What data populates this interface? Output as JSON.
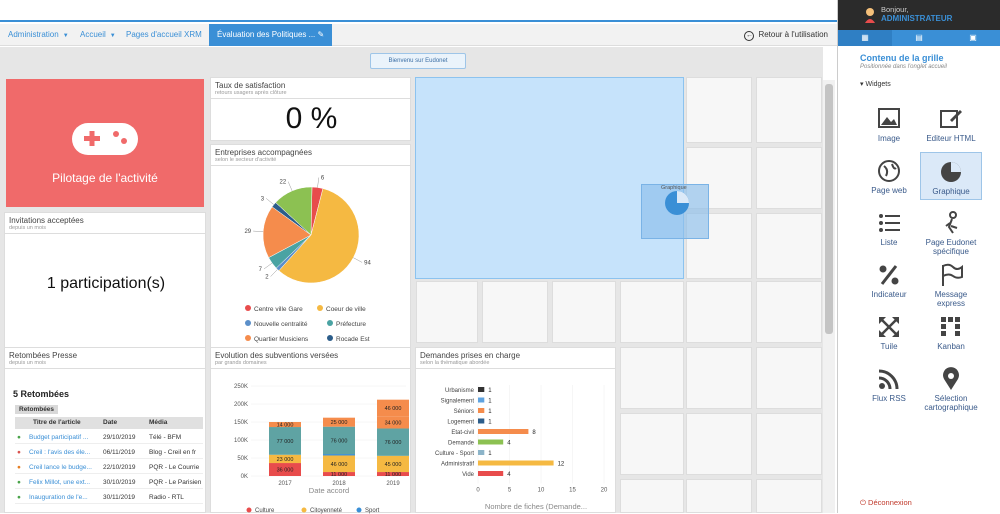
{
  "breadcrumb": {
    "items": [
      "Administration",
      "Accueil",
      "Pages d'accueil XRM"
    ],
    "active": "Évaluation des Politiques ...",
    "back": "Retour à l'utilisation"
  },
  "welcome": "Bienvenu sur Eudonet",
  "pilotage": {
    "label": "Pilotage de l'activité"
  },
  "satisfaction": {
    "title": "Taux de satisfaction",
    "subtitle": "retours usagers après clôture",
    "value": "0 %"
  },
  "invitations": {
    "title": "Invitations acceptées",
    "subtitle": "depuis un mois",
    "value": "1 participation(s)"
  },
  "entreprises": {
    "title": "Entreprises accompagnées",
    "subtitle": "selon le secteur d'activité",
    "chart_data": {
      "type": "pie",
      "slices": [
        {
          "name": "Centre ville Gare",
          "value": 6,
          "color": "#e84c4c"
        },
        {
          "name": "Coeur de ville",
          "value": 94,
          "color": "#f5b942"
        },
        {
          "name": "Nouvelle centralité",
          "value": 2,
          "color": "#5b8fc9"
        },
        {
          "name": "Préfecture",
          "value": 7,
          "color": "#4aa3a3"
        },
        {
          "name": "Quartier Musiciens",
          "value": 29,
          "color": "#f58c4c"
        },
        {
          "name": "Rocade Est",
          "value": 3,
          "color": "#2c5d8a"
        },
        {
          "name": "",
          "value": 22,
          "color": "#8cc152"
        }
      ],
      "legend": [
        "Centre ville Gare",
        "Coeur de ville",
        "Nouvelle centralité",
        "Préfecture",
        "Quartier Musiciens",
        "Rocade Est"
      ]
    }
  },
  "subventions": {
    "title": "Evolution des subventions versées",
    "subtitle": "par grands domaines",
    "xlabel": "Date accord",
    "legend": [
      "Culture",
      "Citoyenneté",
      "Sport"
    ],
    "chart_data": {
      "type": "bar",
      "stacked": true,
      "categories": [
        "2017",
        "2018",
        "2019"
      ],
      "yticks": [
        "0K",
        "50K",
        "100K",
        "150K",
        "200K",
        "250K"
      ],
      "ylim": [
        0,
        250000
      ],
      "series": [
        {
          "name": "Culture",
          "color": "#e84c4c",
          "values": [
            36000,
            11000,
            11000
          ]
        },
        {
          "name": "Citoyenneté",
          "color": "#f5b942",
          "values": [
            23000,
            46000,
            45000
          ]
        },
        {
          "name": "Sport",
          "color": "#3a8fd6",
          "values": [
            0,
            4000,
            0
          ]
        },
        {
          "name": "",
          "color": "#5fa3a3",
          "values": [
            77000,
            76000,
            76000
          ]
        },
        {
          "name": "",
          "color": "#f58c4c",
          "values": [
            14000,
            25000,
            34000
          ]
        },
        {
          "name": "",
          "color": "#f58c4c",
          "values": [
            0,
            0,
            46000
          ]
        }
      ],
      "labels": [
        [
          "36 000",
          "23 000",
          "",
          "77 000",
          "14 000",
          ""
        ],
        [
          "11 000",
          "46 000",
          "",
          "76 000",
          "25 000",
          ""
        ],
        [
          "11 000",
          "45 000",
          "",
          "76 000",
          "34 000",
          "46 000"
        ]
      ]
    }
  },
  "demandes": {
    "title": "Demandes prises en charge",
    "subtitle": "selon la thématique abordée",
    "xlabel": "Nombre de fiches (Demande...",
    "chart_data": {
      "type": "bar",
      "orientation": "horizontal",
      "categories": [
        "Urbanisme",
        "Signalement",
        "Séniors",
        "Logement",
        "Etat-civil",
        "Demande",
        "Culture - Sport",
        "Administratif",
        "Vide"
      ],
      "values": [
        1,
        1,
        1,
        1,
        8,
        4,
        1,
        12,
        4
      ],
      "colors": [
        "#333333",
        "#5fa3e0",
        "#f58c4c",
        "#2c5d8a",
        "#f58c4c",
        "#8cc152",
        "#8cb4c9",
        "#f5b942",
        "#e84c4c"
      ],
      "xticks": [
        "0",
        "5",
        "10",
        "15",
        "20"
      ],
      "xlim": [
        0,
        20
      ]
    }
  },
  "presse": {
    "title": "Retombées Presse",
    "subtitle": "depuis un mois",
    "count": "5 Retombées",
    "tag": "Retombées",
    "columns": [
      "Titre de l'article",
      "Date",
      "Média"
    ],
    "rows": [
      {
        "t": "Budget participatif ...",
        "d": "29/10/2019",
        "m": "Télé - BFM",
        "c": "#4aa34a"
      },
      {
        "t": "Creil : l'avis des éle...",
        "d": "06/11/2019",
        "m": "Blog - Creil en fr",
        "c": "#d9534f"
      },
      {
        "t": "Creil lance le budge...",
        "d": "22/10/2019",
        "m": "PQR - Le Courrie",
        "c": "#e67e22"
      },
      {
        "t": "Felix Millot, une ext...",
        "d": "30/10/2019",
        "m": "PQR - Le Parisien",
        "c": "#4aa34a"
      },
      {
        "t": "Inauguration de l'e...",
        "d": "30/11/2019",
        "m": "Radio - RTL",
        "c": "#4aa34a"
      }
    ]
  },
  "panel": {
    "greeting": "Bonjour,",
    "user": "ADMINISTRATEUR",
    "title": "Contenu de la grille",
    "subtitle": "Positionnée dans l'onglet accueil",
    "section": "Widgets",
    "logout": "Déconnexion",
    "tools": [
      {
        "label": "Image",
        "icon": "image-icon"
      },
      {
        "label": "Editeur HTML",
        "icon": "edit-icon"
      },
      {
        "label": "Page web",
        "icon": "globe-icon"
      },
      {
        "label": "Graphique",
        "icon": "pie-icon"
      },
      {
        "label": "Liste",
        "icon": "list-icon"
      },
      {
        "label": "Page Eudonet spécifique",
        "icon": "figure-icon"
      },
      {
        "label": "Indicateur",
        "icon": "percent-icon"
      },
      {
        "label": "Message express",
        "icon": "flag-icon"
      },
      {
        "label": "Tuile",
        "icon": "tile-icon"
      },
      {
        "label": "Kanban",
        "icon": "kanban-icon"
      },
      {
        "label": "Flux RSS",
        "icon": "rss-icon"
      },
      {
        "label": "Sélection cartographique",
        "icon": "map-pin-icon"
      }
    ]
  },
  "drag": {
    "label": "Graphique"
  },
  "colors": {
    "accent": "#3a8fd6",
    "pilotage": "#f06a6a",
    "dropzone": "#c6e3fb"
  }
}
